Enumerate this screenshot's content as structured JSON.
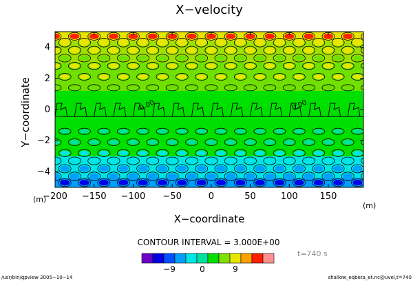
{
  "chart_data": {
    "type": "heatmap",
    "title": "X−velocity",
    "xlabel": "X−coordinate",
    "ylabel": "Y−coordinate",
    "x_unit": "(m)",
    "y_unit": "(m)",
    "xlim": [
      -200,
      195
    ],
    "ylim": [
      -5,
      5
    ],
    "x_ticks": [
      -200,
      -150,
      -100,
      -50,
      0,
      50,
      100,
      150
    ],
    "y_ticks": [
      -4,
      -2,
      0,
      2,
      4
    ],
    "x_tick_labels": [
      "−200",
      "−150",
      "−100",
      "−50",
      "0",
      "50",
      "100",
      "150"
    ],
    "y_tick_labels": [
      "−4",
      "−2",
      "0",
      "2",
      "4"
    ],
    "contour_interval": "CONTOUR INTERVAL = 3.000E+00",
    "zero_contour_label": "0.00",
    "zero_label_x": [
      -90,
      105
    ],
    "time_label": "t=740 s",
    "colorbar": {
      "colors": [
        "#6a00c8",
        "#0000e6",
        "#0050ff",
        "#00a0ff",
        "#00e6e6",
        "#00e0a0",
        "#00e000",
        "#80e000",
        "#e6e600",
        "#ffa000",
        "#ff2000",
        "#ff9090"
      ],
      "tick_labels": [
        "−9",
        "0",
        "9"
      ],
      "tick_boxes": [
        2,
        5,
        8
      ]
    },
    "field": {
      "base_colors": {
        "green": "#00e000",
        "yellowgreen": "#70e000",
        "aqua": "#00e0a0",
        "cyan": "#00e6e6",
        "light_blue": "#00a0ff",
        "yellow": "#e6e600",
        "red": "#ff2000",
        "blue": "#0000e6"
      },
      "band_levels": [
        {
          "y": [
            -5,
            -4.4
          ],
          "value": -3
        },
        {
          "y": [
            -4.4,
            -3.0
          ],
          "value": -1
        },
        {
          "y": [
            -3.0,
            -1.2
          ],
          "value": 0
        },
        {
          "y": [
            -1.2,
            1.2
          ],
          "value": 0
        },
        {
          "y": [
            1.2,
            3.0
          ],
          "value": 0.5
        },
        {
          "y": [
            3.0,
            4.4
          ],
          "value": 1.5
        },
        {
          "y": [
            4.4,
            5
          ],
          "value": 3
        }
      ]
    }
  },
  "footer": {
    "left": "/usr/bin/gpview  2005−10−14",
    "right": "shallow_eqbeta_et.nc@uvel,t=740"
  }
}
